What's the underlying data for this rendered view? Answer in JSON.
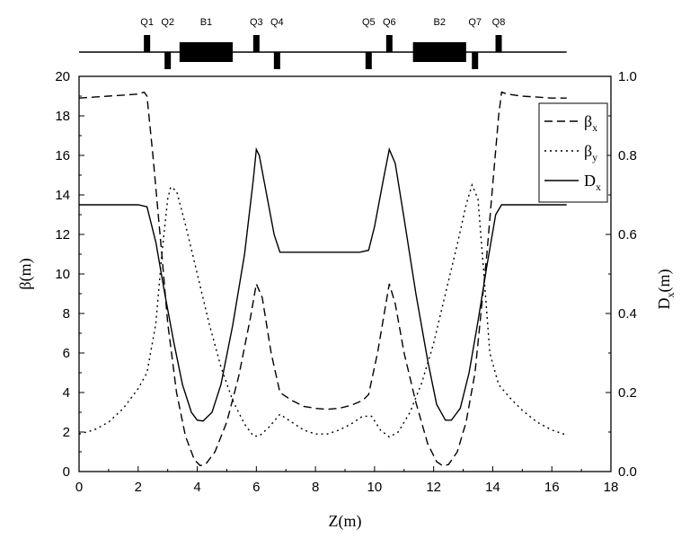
{
  "chart_data": {
    "type": "line",
    "title": "",
    "xlabel": "Z(m)",
    "ylabel": "β(m)",
    "y2label": "D",
    "y2label_sub": "x",
    "y2label_unit": "(m)",
    "xlim": [
      0,
      18
    ],
    "ylim": [
      0,
      20
    ],
    "y2lim": [
      0,
      1.0
    ],
    "x_ticks": [
      0,
      2,
      4,
      6,
      8,
      10,
      12,
      14,
      16,
      18
    ],
    "y_ticks": [
      0,
      2,
      4,
      6,
      8,
      10,
      12,
      14,
      16,
      18,
      20
    ],
    "y2_ticks": [
      "0.0",
      "0.2",
      "0.4",
      "0.6",
      "0.8",
      "1.0"
    ],
    "legend_position": "top-right",
    "series": [
      {
        "name": "β",
        "sub": "x",
        "axis": "left",
        "dash": "dashed",
        "points": [
          [
            0.0,
            18.9
          ],
          [
            0.5,
            18.95
          ],
          [
            1.0,
            19.0
          ],
          [
            1.5,
            19.05
          ],
          [
            2.0,
            19.1
          ],
          [
            2.2,
            19.2
          ],
          [
            2.3,
            19.0
          ],
          [
            2.5,
            16.0
          ],
          [
            2.8,
            11.0
          ],
          [
            3.0,
            7.5
          ],
          [
            3.3,
            4.0
          ],
          [
            3.6,
            1.8
          ],
          [
            3.9,
            0.6
          ],
          [
            4.1,
            0.3
          ],
          [
            4.3,
            0.4
          ],
          [
            4.6,
            1.0
          ],
          [
            5.0,
            2.5
          ],
          [
            5.4,
            4.8
          ],
          [
            5.8,
            7.8
          ],
          [
            6.0,
            9.5
          ],
          [
            6.2,
            8.8
          ],
          [
            6.5,
            6.0
          ],
          [
            6.8,
            4.0
          ],
          [
            7.2,
            3.6
          ],
          [
            7.6,
            3.3
          ],
          [
            8.0,
            3.2
          ],
          [
            8.4,
            3.15
          ],
          [
            8.8,
            3.2
          ],
          [
            9.2,
            3.35
          ],
          [
            9.6,
            3.6
          ],
          [
            9.8,
            3.9
          ],
          [
            10.1,
            6.0
          ],
          [
            10.5,
            9.5
          ],
          [
            10.7,
            8.5
          ],
          [
            11.0,
            6.0
          ],
          [
            11.4,
            3.5
          ],
          [
            11.8,
            1.4
          ],
          [
            12.1,
            0.5
          ],
          [
            12.3,
            0.3
          ],
          [
            12.5,
            0.35
          ],
          [
            12.8,
            1.0
          ],
          [
            13.1,
            2.5
          ],
          [
            13.4,
            5.0
          ],
          [
            13.6,
            8.0
          ],
          [
            13.8,
            11.0
          ],
          [
            14.0,
            14.5
          ],
          [
            14.2,
            18.0
          ],
          [
            14.3,
            19.2
          ],
          [
            14.5,
            19.1
          ],
          [
            15.0,
            19.0
          ],
          [
            15.5,
            18.95
          ],
          [
            16.0,
            18.9
          ],
          [
            16.5,
            18.9
          ]
        ]
      },
      {
        "name": "β",
        "sub": "y",
        "axis": "left",
        "dash": "dotted",
        "points": [
          [
            0.0,
            1.9
          ],
          [
            0.5,
            2.1
          ],
          [
            1.0,
            2.5
          ],
          [
            1.5,
            3.2
          ],
          [
            2.0,
            4.2
          ],
          [
            2.3,
            5.0
          ],
          [
            2.6,
            7.5
          ],
          [
            2.8,
            11.0
          ],
          [
            3.0,
            13.8
          ],
          [
            3.1,
            14.4
          ],
          [
            3.3,
            14.2
          ],
          [
            3.6,
            12.5
          ],
          [
            4.0,
            10.0
          ],
          [
            4.4,
            7.5
          ],
          [
            4.8,
            5.3
          ],
          [
            5.2,
            3.6
          ],
          [
            5.6,
            2.4
          ],
          [
            5.9,
            1.8
          ],
          [
            6.1,
            1.8
          ],
          [
            6.4,
            2.2
          ],
          [
            6.8,
            2.9
          ],
          [
            7.2,
            2.5
          ],
          [
            7.6,
            2.1
          ],
          [
            8.0,
            1.9
          ],
          [
            8.4,
            1.9
          ],
          [
            8.8,
            2.1
          ],
          [
            9.2,
            2.4
          ],
          [
            9.6,
            2.8
          ],
          [
            9.9,
            2.8
          ],
          [
            10.2,
            2.1
          ],
          [
            10.5,
            1.75
          ],
          [
            10.8,
            2.0
          ],
          [
            11.2,
            3.0
          ],
          [
            11.6,
            4.5
          ],
          [
            12.0,
            6.5
          ],
          [
            12.4,
            9.0
          ],
          [
            12.8,
            11.5
          ],
          [
            13.1,
            13.5
          ],
          [
            13.3,
            14.5
          ],
          [
            13.5,
            13.8
          ],
          [
            13.7,
            10.0
          ],
          [
            13.9,
            6.0
          ],
          [
            14.2,
            4.4
          ],
          [
            14.6,
            3.7
          ],
          [
            15.0,
            3.1
          ],
          [
            15.5,
            2.5
          ],
          [
            16.0,
            2.1
          ],
          [
            16.5,
            1.85
          ]
        ]
      },
      {
        "name": "D",
        "sub": "x",
        "axis": "right",
        "dash": "solid",
        "points": [
          [
            0.0,
            0.675
          ],
          [
            1.0,
            0.675
          ],
          [
            2.0,
            0.675
          ],
          [
            2.3,
            0.67
          ],
          [
            2.6,
            0.58
          ],
          [
            2.9,
            0.45
          ],
          [
            3.2,
            0.33
          ],
          [
            3.5,
            0.22
          ],
          [
            3.8,
            0.15
          ],
          [
            4.0,
            0.13
          ],
          [
            4.2,
            0.128
          ],
          [
            4.5,
            0.15
          ],
          [
            4.8,
            0.22
          ],
          [
            5.2,
            0.37
          ],
          [
            5.6,
            0.55
          ],
          [
            5.9,
            0.74
          ],
          [
            6.0,
            0.815
          ],
          [
            6.1,
            0.8
          ],
          [
            6.3,
            0.72
          ],
          [
            6.6,
            0.6
          ],
          [
            6.8,
            0.555
          ],
          [
            7.5,
            0.555
          ],
          [
            8.5,
            0.555
          ],
          [
            9.5,
            0.555
          ],
          [
            9.8,
            0.56
          ],
          [
            10.0,
            0.62
          ],
          [
            10.3,
            0.74
          ],
          [
            10.5,
            0.815
          ],
          [
            10.7,
            0.78
          ],
          [
            11.0,
            0.64
          ],
          [
            11.4,
            0.45
          ],
          [
            11.8,
            0.28
          ],
          [
            12.1,
            0.17
          ],
          [
            12.4,
            0.13
          ],
          [
            12.6,
            0.13
          ],
          [
            12.9,
            0.16
          ],
          [
            13.2,
            0.25
          ],
          [
            13.5,
            0.38
          ],
          [
            13.8,
            0.52
          ],
          [
            14.1,
            0.65
          ],
          [
            14.3,
            0.675
          ],
          [
            15.0,
            0.675
          ],
          [
            16.0,
            0.675
          ],
          [
            16.5,
            0.675
          ]
        ]
      }
    ],
    "lattice": {
      "dipoles": [
        {
          "label": "B1",
          "start": 3.4,
          "end": 5.2
        },
        {
          "label": "B2",
          "start": 11.3,
          "end": 13.1
        }
      ],
      "quadrupoles": [
        {
          "label": "Q1",
          "z": 2.3,
          "side": "up"
        },
        {
          "label": "Q2",
          "z": 3.0,
          "side": "down"
        },
        {
          "label": "Q3",
          "z": 6.0,
          "side": "up"
        },
        {
          "label": "Q4",
          "z": 6.7,
          "side": "down"
        },
        {
          "label": "Q5",
          "z": 9.8,
          "side": "down"
        },
        {
          "label": "Q6",
          "z": 10.5,
          "side": "up"
        },
        {
          "label": "Q7",
          "z": 13.4,
          "side": "down"
        },
        {
          "label": "Q8",
          "z": 14.2,
          "side": "up"
        }
      ],
      "line_extent": [
        0.0,
        16.5
      ]
    }
  }
}
